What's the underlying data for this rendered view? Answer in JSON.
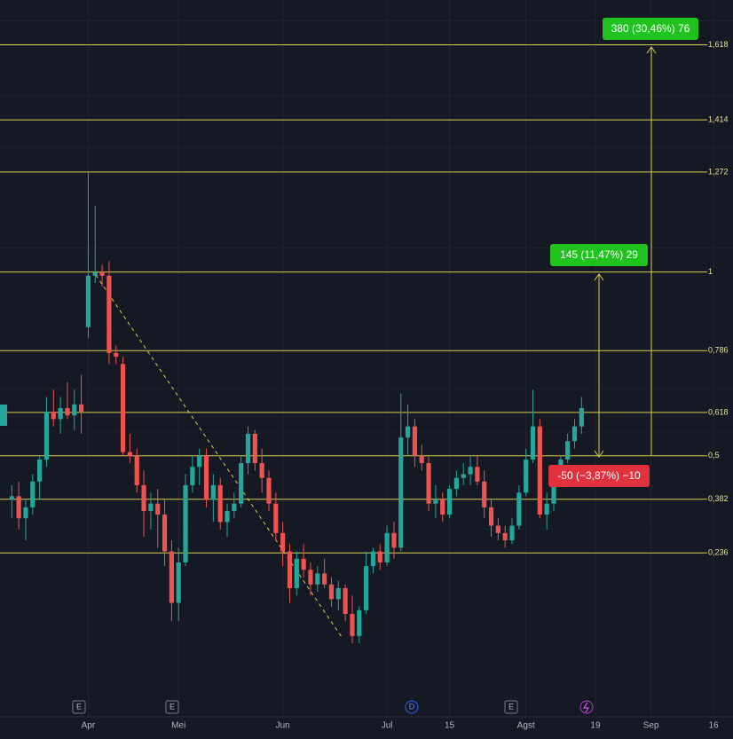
{
  "chart_data": {
    "type": "candlestick",
    "up_color": "#26a69a",
    "down_color": "#ef5350",
    "fib_color": "#d9cf4f",
    "grid": true,
    "xlim": [
      -1.7,
      103.8
    ],
    "ylim": [
      -0.21,
      1.74
    ],
    "xticks": [
      {
        "value": 11,
        "label": "Apr"
      },
      {
        "value": 24,
        "label": "Mei"
      },
      {
        "value": 39,
        "label": "Jun"
      },
      {
        "value": 54,
        "label": "Jul"
      },
      {
        "value": 63,
        "label": "15"
      },
      {
        "value": 74,
        "label": "Agst"
      },
      {
        "value": 84,
        "label": "19"
      },
      {
        "value": 92,
        "label": "Sep"
      },
      {
        "value": 101,
        "label": "16"
      }
    ],
    "fib_levels": [
      {
        "value": 1.618,
        "label": "1,618"
      },
      {
        "value": 1.414,
        "label": "1,414"
      },
      {
        "value": 1.272,
        "label": "1,272"
      },
      1,
      {
        "value": 0.786,
        "label": "0,786"
      },
      {
        "value": 0.618,
        "label": "0,618"
      },
      {
        "value": 0.5,
        "label": "0,5"
      },
      {
        "value": 0.382,
        "label": "0,382"
      },
      {
        "value": 0.236,
        "label": "0,236"
      }
    ],
    "annotations": [
      "380 (30,46%) 76",
      "145 (11,47%) 29",
      "-50 (−3,87%) −10"
    ],
    "event_markers": [
      "E",
      "E",
      "D",
      "E"
    ],
    "candles": [
      [
        0.38,
        0.42,
        0.33,
        0.39
      ],
      [
        0.39,
        0.43,
        0.3,
        0.33
      ],
      [
        0.33,
        0.38,
        0.27,
        0.36
      ],
      [
        0.36,
        0.45,
        0.34,
        0.43
      ],
      [
        0.43,
        0.5,
        0.38,
        0.49
      ],
      [
        0.49,
        0.66,
        0.47,
        0.62
      ],
      [
        0.62,
        0.68,
        0.58,
        0.6
      ],
      [
        0.6,
        0.66,
        0.56,
        0.63
      ],
      [
        0.63,
        0.7,
        0.6,
        0.61
      ],
      [
        0.61,
        0.68,
        0.57,
        0.64
      ],
      [
        0.64,
        0.72,
        0.56,
        0.62
      ],
      [
        0.85,
        1.27,
        0.82,
        0.99
      ],
      [
        0.99,
        1.18,
        0.97,
        1.0
      ],
      [
        1.0,
        1.02,
        0.96,
        0.99
      ],
      [
        0.99,
        1.03,
        0.75,
        0.78
      ],
      [
        0.78,
        0.8,
        0.75,
        0.77
      ],
      [
        0.75,
        0.77,
        0.5,
        0.51
      ],
      [
        0.51,
        0.56,
        0.48,
        0.5
      ],
      [
        0.5,
        0.52,
        0.4,
        0.42
      ],
      [
        0.42,
        0.46,
        0.28,
        0.35
      ],
      [
        0.35,
        0.4,
        0.3,
        0.37
      ],
      [
        0.37,
        0.41,
        0.25,
        0.34
      ],
      [
        0.34,
        0.38,
        0.2,
        0.24
      ],
      [
        0.24,
        0.27,
        0.05,
        0.1
      ],
      [
        0.1,
        0.25,
        0.05,
        0.21
      ],
      [
        0.21,
        0.45,
        0.2,
        0.42
      ],
      [
        0.42,
        0.5,
        0.4,
        0.47
      ],
      [
        0.47,
        0.52,
        0.42,
        0.5
      ],
      [
        0.5,
        0.52,
        0.36,
        0.38
      ],
      [
        0.38,
        0.45,
        0.32,
        0.42
      ],
      [
        0.42,
        0.44,
        0.3,
        0.32
      ],
      [
        0.32,
        0.37,
        0.28,
        0.35
      ],
      [
        0.35,
        0.4,
        0.33,
        0.37
      ],
      [
        0.37,
        0.5,
        0.36,
        0.48
      ],
      [
        0.48,
        0.58,
        0.45,
        0.56
      ],
      [
        0.56,
        0.57,
        0.46,
        0.48
      ],
      [
        0.48,
        0.52,
        0.4,
        0.44
      ],
      [
        0.44,
        0.46,
        0.35,
        0.37
      ],
      [
        0.37,
        0.4,
        0.27,
        0.29
      ],
      [
        0.29,
        0.32,
        0.2,
        0.24
      ],
      [
        0.24,
        0.26,
        0.1,
        0.14
      ],
      [
        0.14,
        0.24,
        0.12,
        0.22
      ],
      [
        0.22,
        0.26,
        0.17,
        0.19
      ],
      [
        0.19,
        0.21,
        0.12,
        0.15
      ],
      [
        0.15,
        0.2,
        0.13,
        0.18
      ],
      [
        0.18,
        0.22,
        0.14,
        0.15
      ],
      [
        0.15,
        0.17,
        0.09,
        0.11
      ],
      [
        0.11,
        0.16,
        0.08,
        0.14
      ],
      [
        0.14,
        0.15,
        0.05,
        0.07
      ],
      [
        0.07,
        0.12,
        -0.01,
        0.01
      ],
      [
        0.01,
        0.09,
        -0.01,
        0.08
      ],
      [
        0.08,
        0.24,
        0.07,
        0.2
      ],
      [
        0.2,
        0.25,
        0.18,
        0.24
      ],
      [
        0.24,
        0.26,
        0.19,
        0.21
      ],
      [
        0.21,
        0.31,
        0.2,
        0.29
      ],
      [
        0.29,
        0.32,
        0.22,
        0.25
      ],
      [
        0.25,
        0.67,
        0.24,
        0.55
      ],
      [
        0.55,
        0.64,
        0.5,
        0.58
      ],
      [
        0.58,
        0.6,
        0.47,
        0.5
      ],
      [
        0.5,
        0.53,
        0.46,
        0.48
      ],
      [
        0.48,
        0.5,
        0.35,
        0.37
      ],
      [
        0.37,
        0.42,
        0.33,
        0.38
      ],
      [
        0.38,
        0.4,
        0.32,
        0.34
      ],
      [
        0.34,
        0.42,
        0.33,
        0.41
      ],
      [
        0.41,
        0.46,
        0.39,
        0.44
      ],
      [
        0.44,
        0.48,
        0.42,
        0.45
      ],
      [
        0.45,
        0.5,
        0.42,
        0.47
      ],
      [
        0.47,
        0.5,
        0.42,
        0.43
      ],
      [
        0.43,
        0.46,
        0.33,
        0.36
      ],
      [
        0.36,
        0.38,
        0.28,
        0.31
      ],
      [
        0.31,
        0.33,
        0.27,
        0.29
      ],
      [
        0.29,
        0.31,
        0.25,
        0.27
      ],
      [
        0.27,
        0.33,
        0.26,
        0.31
      ],
      [
        0.31,
        0.42,
        0.3,
        0.4
      ],
      [
        0.4,
        0.52,
        0.39,
        0.49
      ],
      [
        0.49,
        0.68,
        0.48,
        0.58
      ],
      [
        0.58,
        0.6,
        0.33,
        0.34
      ],
      [
        0.34,
        0.4,
        0.3,
        0.37
      ],
      [
        0.37,
        0.47,
        0.35,
        0.45
      ],
      [
        0.45,
        0.5,
        0.44,
        0.49
      ],
      [
        0.49,
        0.56,
        0.48,
        0.54
      ],
      [
        0.54,
        0.6,
        0.52,
        0.58
      ],
      [
        0.58,
        0.66,
        0.56,
        0.63
      ]
    ]
  }
}
